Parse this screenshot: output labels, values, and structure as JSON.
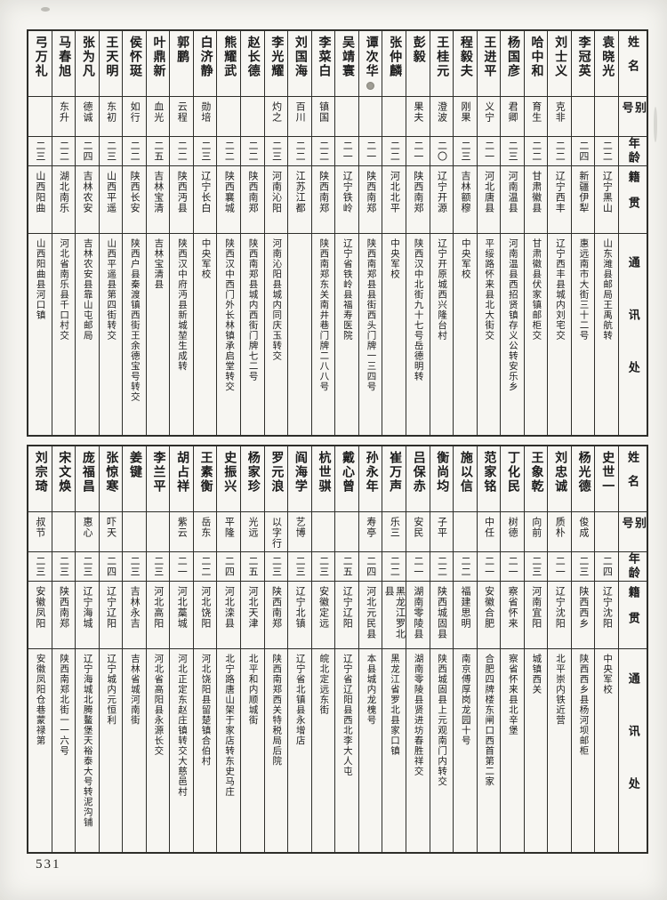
{
  "page": {
    "number": "531"
  },
  "colors": {
    "paper": "#f6f5f1",
    "ink": "#1b1b1b",
    "line": "#2e2e2a"
  },
  "header_labels": {
    "name": "姓名",
    "alias": "别号",
    "age": "年龄",
    "origin": "籍贯",
    "address": "通讯处"
  },
  "tables": [
    {
      "id": "top",
      "entries": [
        {
          "name": "袁晓光",
          "alias": "",
          "age": "二二",
          "origin": "辽宁黑山",
          "address": "山东潍县邮局王禹航转"
        },
        {
          "name": "李冠英",
          "alias": "",
          "age": "二四",
          "origin": "新疆伊犁",
          "address": "惠远南市大街三十二号"
        },
        {
          "name": "刘士义",
          "alias": "克非",
          "age": "二二",
          "origin": "辽宁西丰",
          "address": "辽宁西丰县城内刘宅交"
        },
        {
          "name": "哈中和",
          "alias": "育生",
          "age": "二二",
          "origin": "甘肃徽县",
          "address": "甘肃徽县伏家镇邮柜交"
        },
        {
          "name": "杨国彦",
          "alias": "君卿",
          "age": "二三",
          "origin": "河南温县",
          "address": "河南温县西招贤镇存义公转安乐乡"
        },
        {
          "name": "王进平",
          "alias": "义宁",
          "age": "二一",
          "origin": "河北唐县",
          "address": "平绥路怀来县北大街交"
        },
        {
          "name": "程毅夫",
          "alias": "刚果",
          "age": "二三",
          "origin": "吉林额穆",
          "address": "中央军校"
        },
        {
          "name": "王桂元",
          "alias": "澄波",
          "age": "二〇",
          "origin": "辽宁开源",
          "address": "辽宁开原城西兴隆台村"
        },
        {
          "name": "彭毅",
          "alias": "果夫",
          "age": "二一",
          "origin": "陕西南郑",
          "address": "陕西汉中北街九十七号岳德明转"
        },
        {
          "name": "张仲麟",
          "alias": "",
          "age": "二二",
          "origin": "河北北平",
          "address": "中央军校"
        },
        {
          "name": "谭次华",
          "alias": "",
          "age": "二一",
          "origin": "陕西南郑",
          "address": "陕西南郑县县街西头门牌一三四号",
          "seal": true
        },
        {
          "name": "吴靖寰",
          "alias": "",
          "age": "二一",
          "origin": "辽宁铁岭",
          "address": "辽宁省铁岭县福寿医院"
        },
        {
          "name": "李菜白",
          "alias": "镇国",
          "age": "二二",
          "origin": "陕西南郑",
          "address": "陕西南郑东关南井巷门牌二八八号"
        },
        {
          "name": "刘国海",
          "alias": "百川",
          "age": "二二",
          "origin": "江苏江都",
          "address": ""
        },
        {
          "name": "李光耀",
          "alias": "灼之",
          "age": "二三",
          "origin": "河南沁阳",
          "address": "河南沁阳县城内同庆玉转交"
        },
        {
          "name": "赵长德",
          "alias": "",
          "age": "二二",
          "origin": "陕西南郑",
          "address": "陕西南郑县城内西街门牌七二号"
        },
        {
          "name": "熊耀武",
          "alias": "",
          "age": "二二",
          "origin": "陕西襄城",
          "address": "陕西汉中西门外长林镇承启堂转交"
        },
        {
          "name": "白济静",
          "alias": "勋培",
          "age": "二三",
          "origin": "辽宁长白",
          "address": "中央军校"
        },
        {
          "name": "郭鹏",
          "alias": "云程",
          "age": "二二",
          "origin": "陕西沔县",
          "address": "陕西汉中府沔县新城堃生成转"
        },
        {
          "name": "叶鼎新",
          "alias": "血光",
          "age": "二五",
          "origin": "吉林宝清",
          "address": "吉林宝清县"
        },
        {
          "name": "侯怀珽",
          "alias": "如行",
          "age": "二二",
          "origin": "陕西长安",
          "address": "陕西户县秦渡镇西街王余德宝号转交"
        },
        {
          "name": "王天明",
          "alias": "东初",
          "age": "二三",
          "origin": "山西平遥",
          "address": "山西平遥县第四街转交"
        },
        {
          "name": "张为凡",
          "alias": "德诚",
          "age": "二四",
          "origin": "吉林农安",
          "address": "吉林农安县靠山屯邮局"
        },
        {
          "name": "马春旭",
          "alias": "东升",
          "age": "二二",
          "origin": "湖北南乐",
          "address": "河北省南乐县千口村交"
        },
        {
          "name": "弓万礼",
          "alias": "",
          "age": "二三",
          "origin": "山西阳曲",
          "address": "山西阳曲县河口镇"
        }
      ]
    },
    {
      "id": "bottom",
      "entries": [
        {
          "name": "史世一",
          "alias": "",
          "age": "二四",
          "origin": "辽宁沈阳",
          "address": "中央军校"
        },
        {
          "name": "杨光德",
          "alias": "俊成",
          "age": "二三",
          "origin": "陕西西乡",
          "address": "陕西西乡县杨河坝邮柜"
        },
        {
          "name": "刘忠诚",
          "alias": "质朴",
          "age": "二一",
          "origin": "辽宁沈阳",
          "address": "北平崇内铁近营"
        },
        {
          "name": "王象乾",
          "alias": "向前",
          "age": "二三",
          "origin": "河南宜阳",
          "address": "城镇西关"
        },
        {
          "name": "丁化民",
          "alias": "树德",
          "age": "二一",
          "origin": "察省怀来",
          "address": "察省怀来县北辛堡"
        },
        {
          "name": "范家铭",
          "alias": "中任",
          "age": "二一",
          "origin": "安徽合肥",
          "address": "合肥四牌楼东闸口西首第二家"
        },
        {
          "name": "施以信",
          "alias": "",
          "age": "二二",
          "origin": "福建思明",
          "address": "南京傅厚岗龙园十号"
        },
        {
          "name": "衡尚均",
          "alias": "子平",
          "age": "二二",
          "origin": "陕西城固县",
          "address": "陕西城固县上元观南门内转交"
        },
        {
          "name": "吕保赤",
          "alias": "安民",
          "age": "二一",
          "origin": "湖南零陵县",
          "address": "湖南零陵县贤进坊春胜祥交"
        },
        {
          "name": "崔万声",
          "alias": "乐三",
          "age": "二二",
          "origin": "黑龙江罗北县",
          "address": "黑龙江省罗北县家口镇"
        },
        {
          "name": "孙永年",
          "alias": "寿亭",
          "age": "二四",
          "origin": "河北元民县",
          "address": "本县城内龙槐号"
        },
        {
          "name": "戴心曾",
          "alias": "",
          "age": "二五",
          "origin": "辽宁辽阳",
          "address": "辽宁省辽阳县西北李大人屯"
        },
        {
          "name": "杭世骐",
          "alias": "",
          "age": "二三",
          "origin": "安徽定远",
          "address": "皖北定远东街"
        },
        {
          "name": "阎海学",
          "alias": "艺博",
          "age": "二三",
          "origin": "辽宁北镇",
          "address": "辽宁省北镇县永增店"
        },
        {
          "name": "罗元浪",
          "alias": "以字行",
          "age": "二三",
          "origin": "陕西南郑",
          "address": "陕西南郑西关特税局后院"
        },
        {
          "name": "杨家珍",
          "alias": "光远",
          "age": "二五",
          "origin": "河北天津",
          "address": "北平和内顺城街"
        },
        {
          "name": "史振兴",
          "alias": "平隆",
          "age": "二四",
          "origin": "河北滦县",
          "address": "北宁路唐山架于家店转东史马庄"
        },
        {
          "name": "王素衡",
          "alias": "岳东",
          "age": "二二",
          "origin": "河北饶阳",
          "address": "河北饶阳县留楚镇合伯村"
        },
        {
          "name": "胡占祥",
          "alias": "紫云",
          "age": "二一",
          "origin": "河北藁城",
          "address": "河北正定东赵庄镇转交大慈邑村"
        },
        {
          "name": "李兰平",
          "alias": "",
          "age": "二三",
          "origin": "河北高阳",
          "address": "河北省高阳县永源长交"
        },
        {
          "name": "姜键",
          "alias": "",
          "age": "二三",
          "origin": "吉林永吉",
          "address": "吉林省城河南街"
        },
        {
          "name": "张惊寒",
          "alias": "吓天",
          "age": "二四",
          "origin": "辽宁辽阳",
          "address": "辽宁城内元恒利"
        },
        {
          "name": "庞福昌",
          "alias": "惠心",
          "age": "二三",
          "origin": "辽宁海城",
          "address": "辽宁海城北腾鳌堡天裕泰大号转泥沟铺"
        },
        {
          "name": "宋文焕",
          "alias": "",
          "age": "二三",
          "origin": "陕西南郑",
          "address": "陕西南郑北街一一六号"
        },
        {
          "name": "刘宗琦",
          "alias": "叔节",
          "age": "二三",
          "origin": "安徽凤阳",
          "address": "安徽凤阳仓巷蒙禄第"
        }
      ]
    }
  ]
}
